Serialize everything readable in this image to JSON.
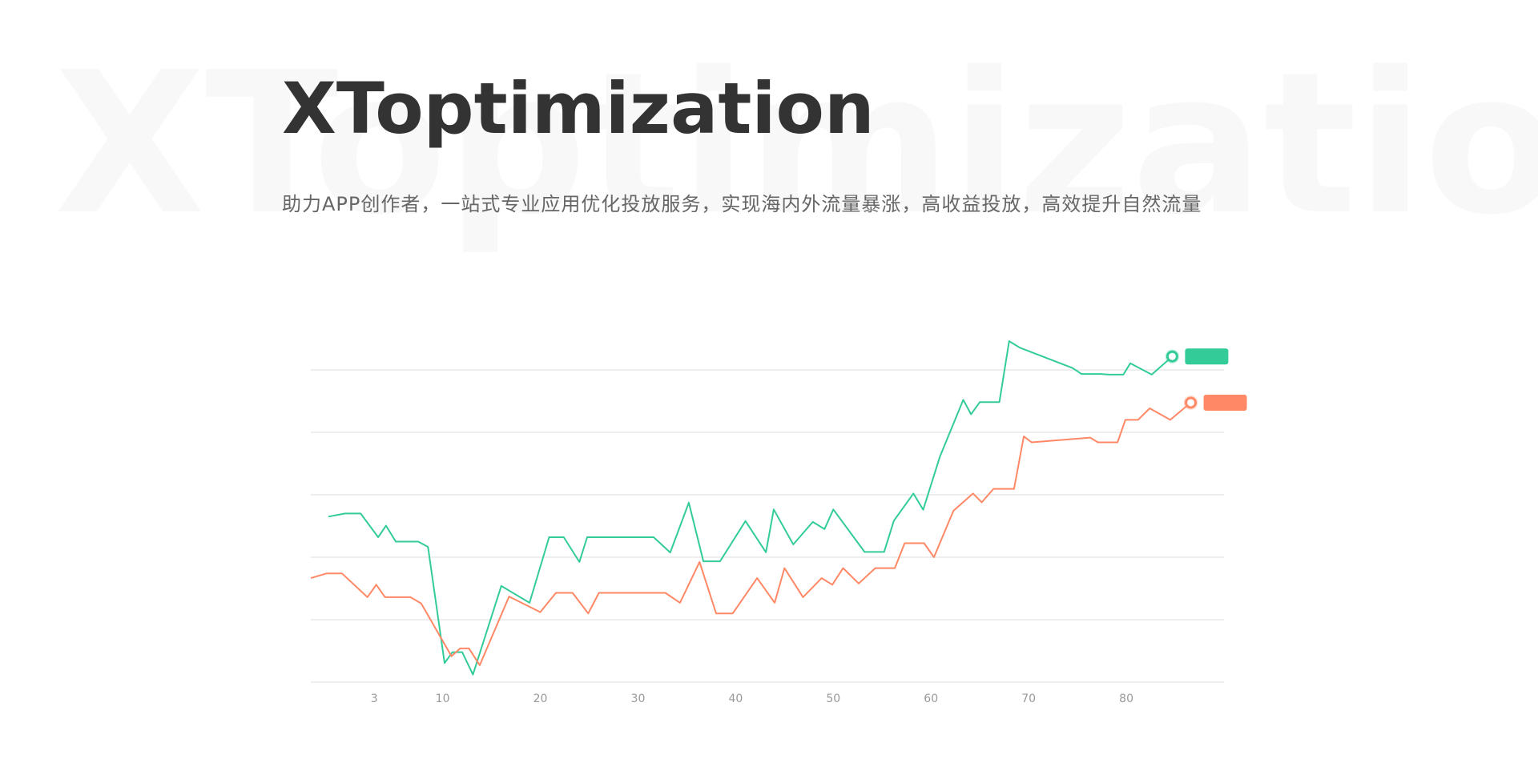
{
  "page": {
    "watermark": "XToptimization",
    "title": "XToptimization",
    "subtitle": "助力APP创作者，一站式专业应用优化投放服务，实现海内外流量暴涨，高收益投放，高效提升自然流量"
  },
  "colors": {
    "series_green": "#33cc99",
    "series_orange": "#ff8866",
    "grid": "#dddddd",
    "axis_text": "#999999"
  },
  "chart_data": {
    "type": "line",
    "title": "",
    "xlabel": "",
    "ylabel": "",
    "xlim": [
      -3.5,
      90
    ],
    "ylim": [
      0,
      100
    ],
    "x_ticks": [
      3,
      10,
      20,
      30,
      40,
      50,
      60,
      70,
      80
    ],
    "y_gridlines": [
      0,
      20,
      40,
      60,
      80,
      100
    ],
    "legend": "end-of-line badges (unlabeled)",
    "series": [
      {
        "color": "#33cc99",
        "points": [
          [
            -1.7,
            53
          ],
          [
            0,
            54
          ],
          [
            1.6,
            54
          ],
          [
            3.4,
            46.4
          ],
          [
            4.2,
            50.1
          ],
          [
            5.2,
            45
          ],
          [
            7.5,
            45
          ],
          [
            8.5,
            43.3
          ],
          [
            10.2,
            6.1
          ],
          [
            11,
            9.6
          ],
          [
            12,
            9.6
          ],
          [
            13.1,
            2.4
          ],
          [
            16,
            30.8
          ],
          [
            18.9,
            25.4
          ],
          [
            20.9,
            46.4
          ],
          [
            22.4,
            46.4
          ],
          [
            24,
            38.5
          ],
          [
            24.8,
            46.4
          ],
          [
            31.6,
            46.4
          ],
          [
            33.3,
            41.5
          ],
          [
            35.2,
            57.5
          ],
          [
            36.7,
            38.7
          ],
          [
            38.4,
            38.7
          ],
          [
            41,
            51.6
          ],
          [
            43.1,
            41.6
          ],
          [
            43.9,
            55.3
          ],
          [
            45.9,
            44.1
          ],
          [
            47.9,
            51.3
          ],
          [
            49.1,
            49
          ],
          [
            50,
            55.3
          ],
          [
            53.2,
            41.7
          ],
          [
            55.2,
            41.7
          ],
          [
            56.2,
            51.7
          ],
          [
            58.2,
            60.4
          ],
          [
            59.2,
            55.2
          ],
          [
            60.9,
            72.1
          ],
          [
            63.3,
            90.4
          ],
          [
            64.1,
            85.8
          ],
          [
            65,
            89.7
          ],
          [
            67,
            89.7
          ],
          [
            68,
            109.2
          ],
          [
            69.1,
            107.1
          ],
          [
            74.5,
            100.6
          ],
          [
            75.4,
            98.7
          ],
          [
            77.4,
            98.7
          ],
          [
            78.2,
            98.5
          ],
          [
            79.7,
            98.5
          ],
          [
            80.4,
            102.1
          ],
          [
            82.6,
            98.5
          ],
          [
            84.7,
            104.3
          ]
        ]
      },
      {
        "color": "#ff8866",
        "points": [
          [
            -3.5,
            33.3
          ],
          [
            -1.9,
            34.8
          ],
          [
            -0.3,
            34.8
          ],
          [
            2.3,
            27.2
          ],
          [
            3.2,
            31.2
          ],
          [
            4.1,
            27.2
          ],
          [
            6.7,
            27.2
          ],
          [
            7.8,
            25.2
          ],
          [
            10.9,
            8.3
          ],
          [
            11.8,
            10.8
          ],
          [
            12.7,
            10.8
          ],
          [
            13.8,
            5.4
          ],
          [
            16.8,
            27.4
          ],
          [
            20,
            22.4
          ],
          [
            21.6,
            28.6
          ],
          [
            23.3,
            28.6
          ],
          [
            24.9,
            22
          ],
          [
            26,
            28.6
          ],
          [
            32.8,
            28.6
          ],
          [
            34.3,
            25.4
          ],
          [
            36.3,
            38.5
          ],
          [
            38,
            22
          ],
          [
            39.7,
            22
          ],
          [
            42.2,
            33.3
          ],
          [
            44,
            25.4
          ],
          [
            45,
            36.5
          ],
          [
            46.9,
            27.2
          ],
          [
            48.8,
            33.3
          ],
          [
            49.9,
            31.2
          ],
          [
            51,
            36.5
          ],
          [
            52.6,
            31.6
          ],
          [
            54.3,
            36.5
          ],
          [
            56.3,
            36.5
          ],
          [
            57.3,
            44.5
          ],
          [
            59.3,
            44.5
          ],
          [
            60.3,
            40
          ],
          [
            62.3,
            54.9
          ],
          [
            64.3,
            60.4
          ],
          [
            65.2,
            57.6
          ],
          [
            66.4,
            61.9
          ],
          [
            68.5,
            61.9
          ],
          [
            69.5,
            78.7
          ],
          [
            70.3,
            76.8
          ],
          [
            76.3,
            78.3
          ],
          [
            77.1,
            76.8
          ],
          [
            79.1,
            76.8
          ],
          [
            79.9,
            84
          ],
          [
            81.2,
            84
          ],
          [
            82.4,
            87.7
          ],
          [
            84.5,
            84
          ],
          [
            86.6,
            89.5
          ]
        ]
      }
    ]
  }
}
